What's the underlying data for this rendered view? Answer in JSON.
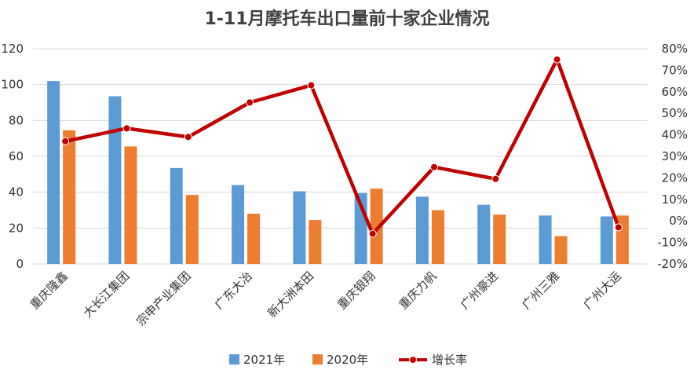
{
  "chart_data": {
    "type": "bar",
    "title": "1-11月摩托车出口量前十家企业情况",
    "categories": [
      "重庆隆鑫",
      "大长江集团",
      "宗申产业集团",
      "广东大冶",
      "新大洲本田",
      "重庆银翔",
      "重庆力帆",
      "广州豪进",
      "广州三雅",
      "广州大运"
    ],
    "series": [
      {
        "name": "2021年",
        "type": "bar",
        "axis": "left",
        "color": "#5b9bd5",
        "values": [
          102,
          93.5,
          53.5,
          44,
          40.5,
          39.5,
          37.5,
          33,
          27,
          26.5
        ]
      },
      {
        "name": "2020年",
        "type": "bar",
        "axis": "left",
        "color": "#ed7d31",
        "values": [
          74.5,
          65.5,
          38.5,
          28,
          24.5,
          42,
          30,
          27.5,
          15.5,
          27
        ]
      },
      {
        "name": "增长率",
        "type": "line",
        "axis": "right",
        "color": "#c00000",
        "values": [
          37,
          43,
          39,
          55,
          63,
          -6,
          25,
          19.5,
          75,
          -3
        ]
      }
    ],
    "left_axis": {
      "min": 0,
      "max": 120,
      "step": 20,
      "ticks": [
        "0",
        "20",
        "40",
        "60",
        "80",
        "100",
        "120"
      ]
    },
    "right_axis": {
      "min": -20,
      "max": 80,
      "step": 10,
      "unit": "%",
      "ticks": [
        "-20%",
        "-10%",
        "0%",
        "10%",
        "20%",
        "30%",
        "40%",
        "50%",
        "60%",
        "70%",
        "80%"
      ]
    },
    "grid": true,
    "legend_position": "bottom"
  }
}
